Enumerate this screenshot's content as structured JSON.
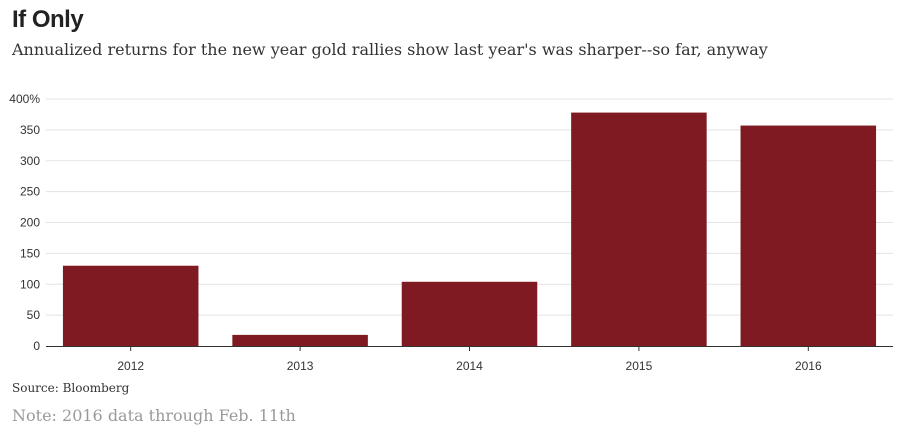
{
  "chart_data": {
    "type": "bar",
    "title": "If Only",
    "subtitle": "Annualized returns for the new year gold rallies show last year's was sharper--so far, anyway",
    "categories": [
      "2012",
      "2013",
      "2014",
      "2015",
      "2016"
    ],
    "values": [
      130,
      18,
      104,
      378,
      357
    ],
    "ylim": [
      0,
      400
    ],
    "yticks": [
      0,
      50,
      100,
      150,
      200,
      250,
      300,
      350,
      400
    ],
    "ytick_labels": [
      "0",
      "50",
      "100",
      "150",
      "200",
      "250",
      "300",
      "350",
      "400%"
    ],
    "xlabel": "",
    "ylabel": "",
    "bar_color": "#7f1a22",
    "grid": true,
    "legend": "none"
  },
  "source": "Source: Bloomberg",
  "note": "Note: 2016 data through Feb. 11th"
}
